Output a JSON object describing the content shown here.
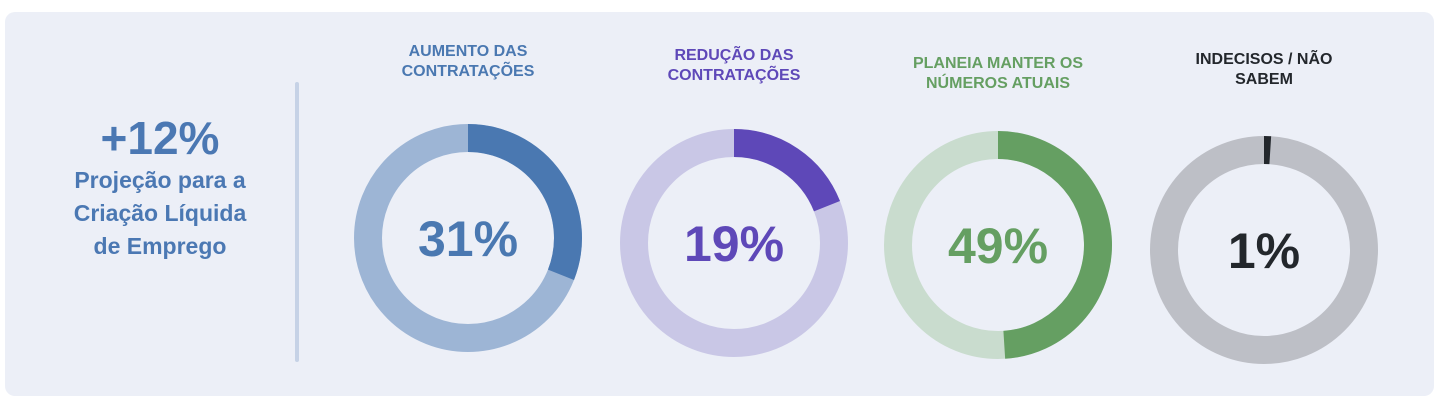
{
  "summary": {
    "value": "+12%",
    "label": "Projeção para a Criação Líquida de Emprego",
    "color": "#4b78b3"
  },
  "chart_data": {
    "type": "pie",
    "variant": "donut",
    "slices": [
      {
        "label_line1": "AUMENTO DAS",
        "label_line2": "CONTRATAÇÕES",
        "value": 31,
        "value_label": "31%",
        "color": "#4a78b1",
        "track_color": "#9db5d5"
      },
      {
        "label_line1": "REDUÇÃO DAS",
        "label_line2": "CONTRATAÇÕES",
        "value": 19,
        "value_label": "19%",
        "color": "#5e48b8",
        "track_color": "#c9c7e6"
      },
      {
        "label_line1": "PLANEIA MANTER OS",
        "label_line2": "NÚMEROS ATUAIS",
        "value": 49,
        "value_label": "49%",
        "color": "#659f62",
        "track_color": "#c9dcce"
      },
      {
        "label_line1": "INDECISOS / NÃO",
        "label_line2": "SABEM",
        "value": 1,
        "value_label": "1%",
        "color": "#23272c",
        "track_color": "#bdbfc6"
      }
    ]
  }
}
